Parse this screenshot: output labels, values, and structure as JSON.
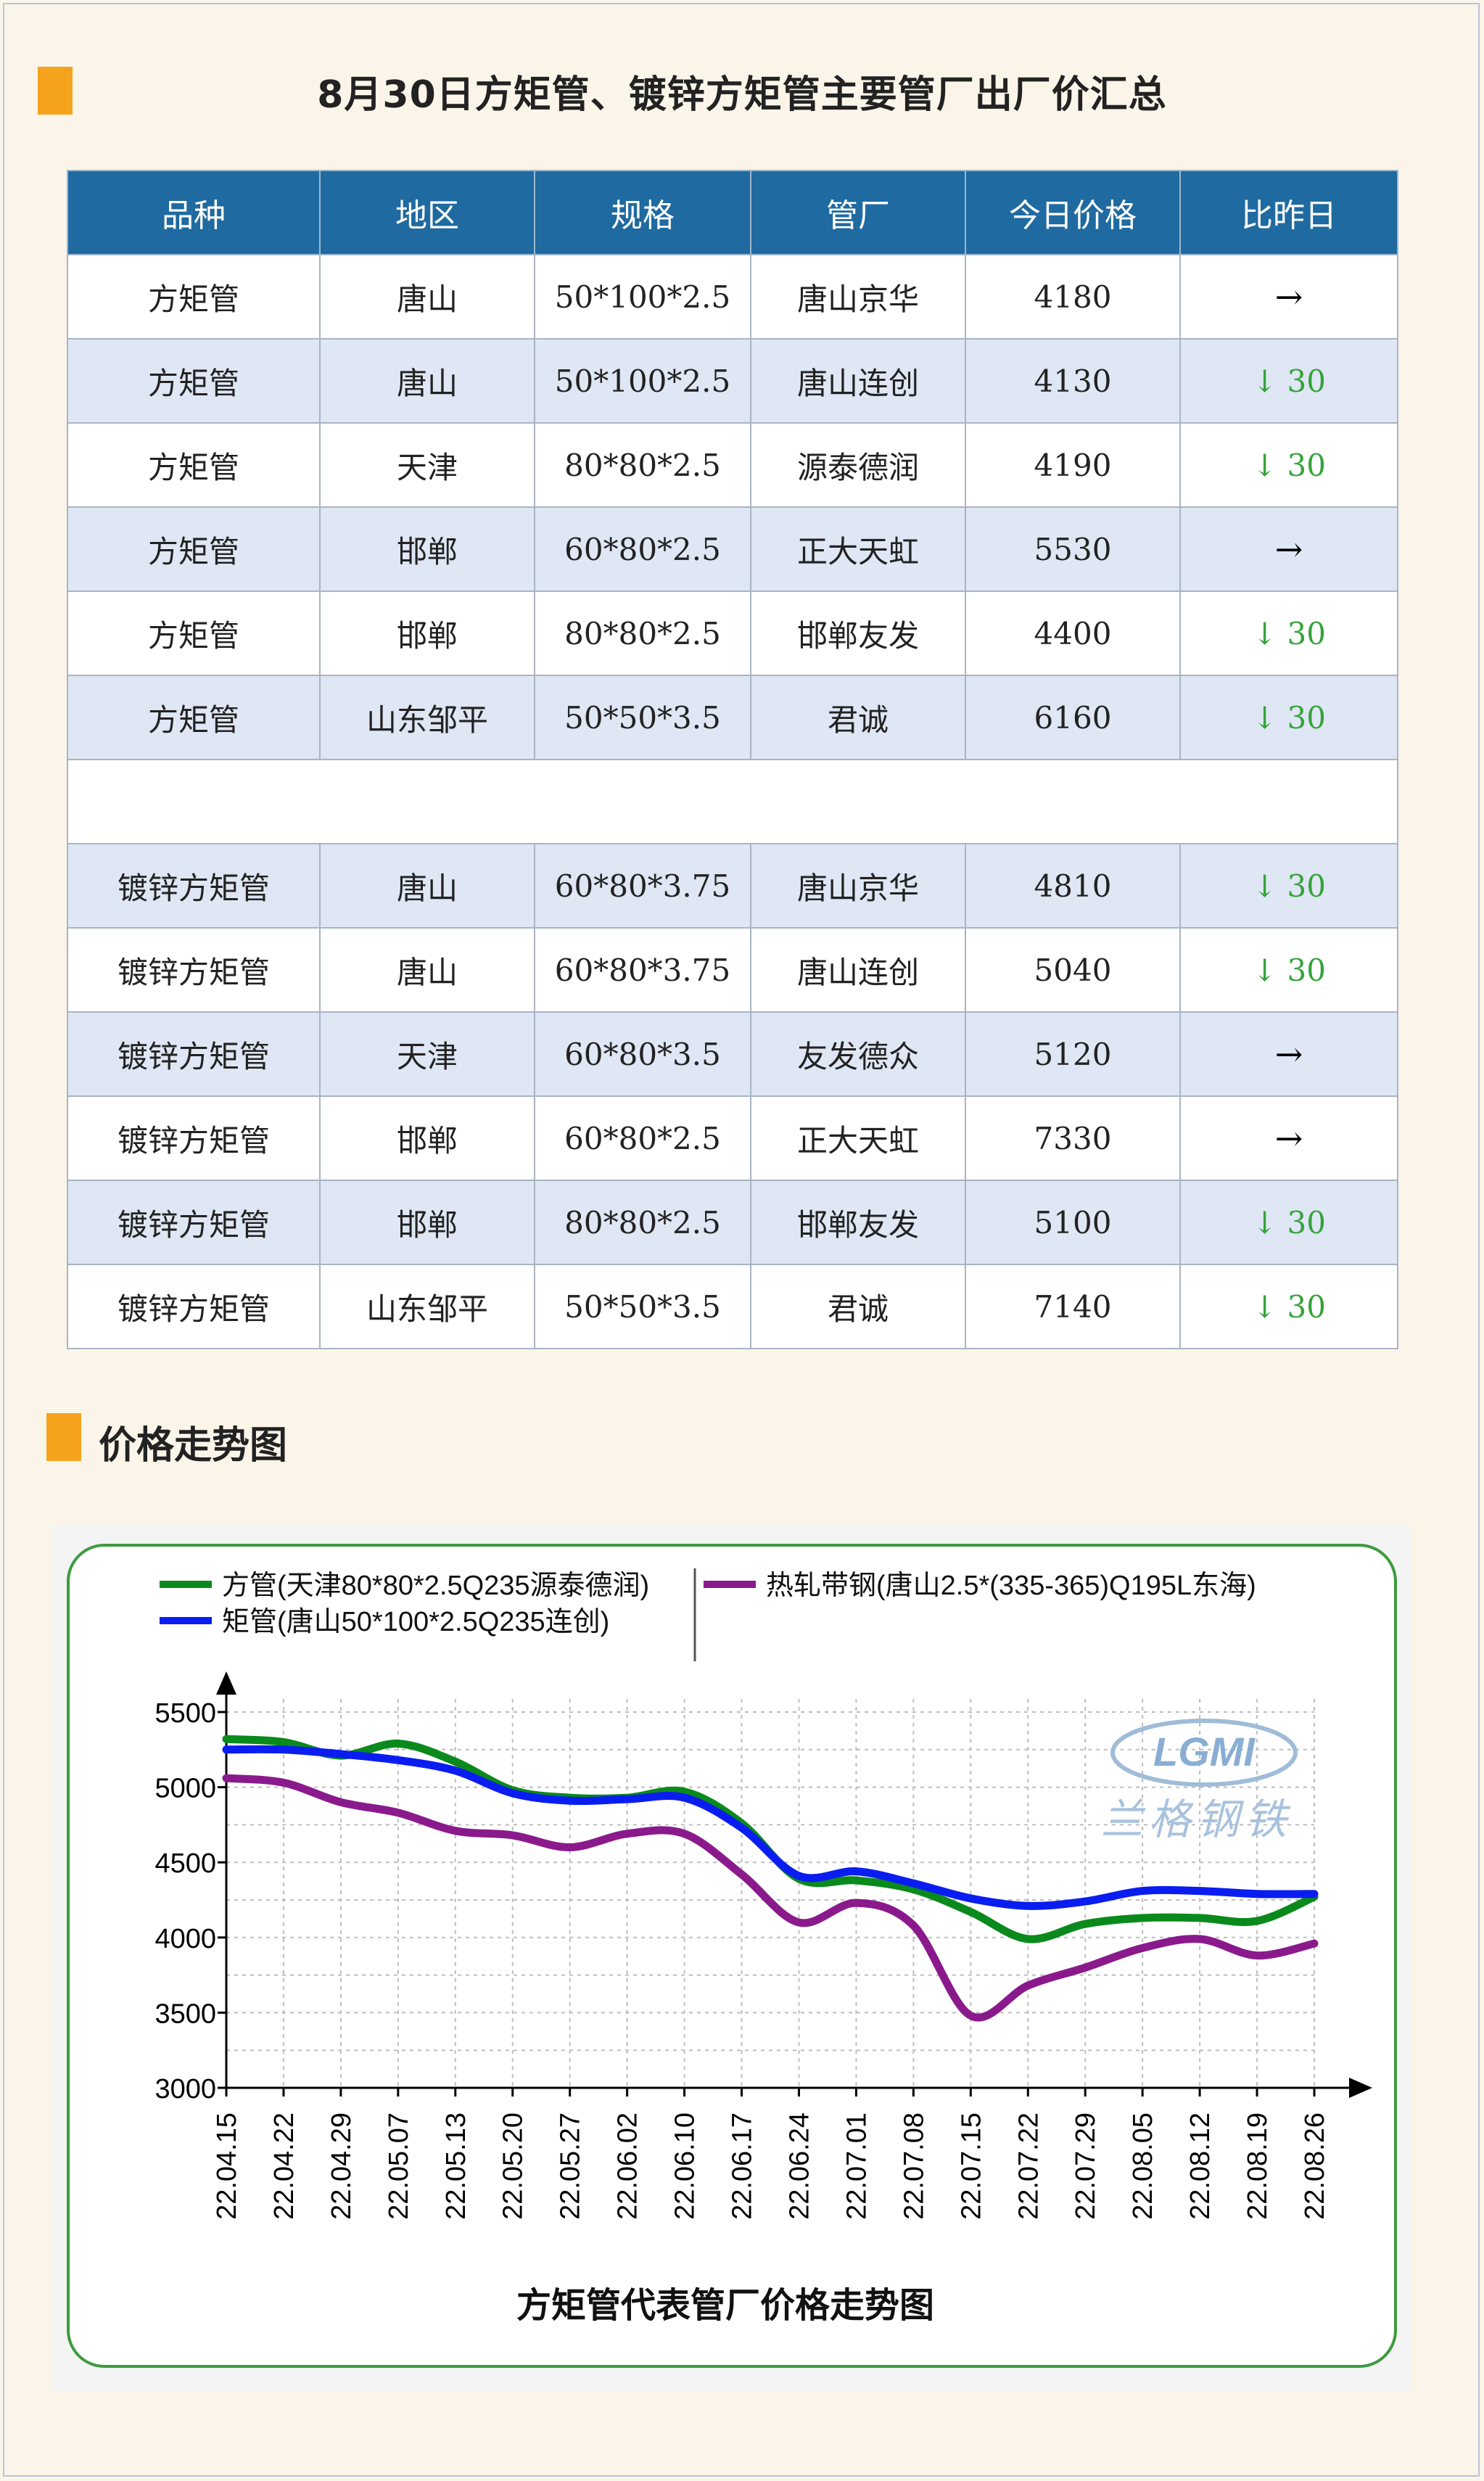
{
  "title": "8月30日方矩管、镀锌方矩管主要管厂出厂价汇总",
  "table": {
    "headers": [
      "品种",
      "地区",
      "规格",
      "管厂",
      "今日价格",
      "比昨日"
    ],
    "rows_square": [
      {
        "type": "方矩管",
        "region": "唐山",
        "spec": "50*100*2.5",
        "mill": "唐山京华",
        "price": "4180",
        "change": "→",
        "dir": "flat"
      },
      {
        "type": "方矩管",
        "region": "唐山",
        "spec": "50*100*2.5",
        "mill": "唐山连创",
        "price": "4130",
        "change": "↓ 30",
        "dir": "down"
      },
      {
        "type": "方矩管",
        "region": "天津",
        "spec": "80*80*2.5",
        "mill": "源泰德润",
        "price": "4190",
        "change": "↓ 30",
        "dir": "down"
      },
      {
        "type": "方矩管",
        "region": "邯郸",
        "spec": "60*80*2.5",
        "mill": "正大天虹",
        "price": "5530",
        "change": "→",
        "dir": "flat"
      },
      {
        "type": "方矩管",
        "region": "邯郸",
        "spec": "80*80*2.5",
        "mill": "邯郸友发",
        "price": "4400",
        "change": "↓ 30",
        "dir": "down"
      },
      {
        "type": "方矩管",
        "region": "山东邹平",
        "spec": "50*50*3.5",
        "mill": "君诚",
        "price": "6160",
        "change": "↓ 30",
        "dir": "down"
      }
    ],
    "rows_galv": [
      {
        "type": "镀锌方矩管",
        "region": "唐山",
        "spec": "60*80*3.75",
        "mill": "唐山京华",
        "price": "4810",
        "change": "↓ 30",
        "dir": "down"
      },
      {
        "type": "镀锌方矩管",
        "region": "唐山",
        "spec": "60*80*3.75",
        "mill": "唐山连创",
        "price": "5040",
        "change": "↓ 30",
        "dir": "down"
      },
      {
        "type": "镀锌方矩管",
        "region": "天津",
        "spec": "60*80*3.5",
        "mill": "友发德众",
        "price": "5120",
        "change": "→",
        "dir": "flat"
      },
      {
        "type": "镀锌方矩管",
        "region": "邯郸",
        "spec": "60*80*2.5",
        "mill": "正大天虹",
        "price": "7330",
        "change": "→",
        "dir": "flat"
      },
      {
        "type": "镀锌方矩管",
        "region": "邯郸",
        "spec": "80*80*2.5",
        "mill": "邯郸友发",
        "price": "5100",
        "change": "↓ 30",
        "dir": "down"
      },
      {
        "type": "镀锌方矩管",
        "region": "山东邹平",
        "spec": "50*50*3.5",
        "mill": "君诚",
        "price": "7140",
        "change": "↓ 30",
        "dir": "down"
      }
    ]
  },
  "trend_heading": "价格走势图",
  "colors": {
    "accent": "#f5a21d",
    "header_bg": "#1f6aa0",
    "row_alt": "#dfe6f4",
    "down": "#35a33a"
  },
  "chart_data": {
    "type": "line",
    "title": "方矩管代表管厂价格走势图",
    "watermark_logo": "LGMI",
    "watermark_text": "兰格钢铁",
    "x": [
      "22.04.15",
      "22.04.22",
      "22.04.29",
      "22.05.07",
      "22.05.13",
      "22.05.20",
      "22.05.27",
      "22.06.02",
      "22.06.10",
      "22.06.17",
      "22.06.24",
      "22.07.01",
      "22.07.08",
      "22.07.15",
      "22.07.22",
      "22.07.29",
      "22.08.05",
      "22.08.12",
      "22.08.19",
      "22.08.26"
    ],
    "ylim": [
      3000,
      5500
    ],
    "yticks": [
      3000,
      3500,
      4000,
      4500,
      5000,
      5500
    ],
    "grid": true,
    "legend": "top",
    "series": [
      {
        "name": "方管(天津80*80*2.5Q235源泰德润)",
        "color": "#0a8a1c",
        "values": [
          5320,
          5300,
          5210,
          5290,
          5170,
          4980,
          4930,
          4930,
          4970,
          4760,
          4390,
          4380,
          4320,
          4170,
          3990,
          4090,
          4130,
          4130,
          4110,
          4270
        ]
      },
      {
        "name": "矩管(唐山50*100*2.5Q235连创)",
        "color": "#0a1df0",
        "values": [
          5250,
          5250,
          5220,
          5180,
          5110,
          4960,
          4910,
          4920,
          4930,
          4730,
          4410,
          4440,
          4360,
          4260,
          4210,
          4240,
          4310,
          4310,
          4290,
          4290
        ]
      },
      {
        "name": "热轧带钢(唐山2.5*(335-365)Q195L东海)",
        "color": "#8a1a8c",
        "values": [
          5060,
          5030,
          4900,
          4830,
          4710,
          4680,
          4600,
          4690,
          4690,
          4420,
          4100,
          4230,
          4080,
          3480,
          3680,
          3800,
          3930,
          3990,
          3880,
          3960
        ]
      }
    ]
  }
}
